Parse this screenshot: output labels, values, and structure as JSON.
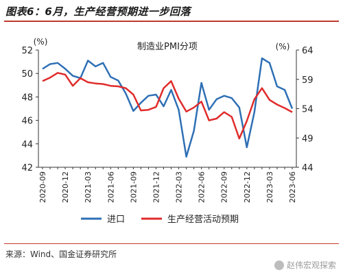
{
  "figure": {
    "title": "图表6：6月，生产经营预期进一步回落",
    "source": "来源：Wind、国金证券研究所",
    "watermark": "赵伟宏观探索"
  },
  "chart_data": {
    "type": "line",
    "title": "制造业PMI分项",
    "left_axis": {
      "unit": "(%)",
      "ylim": [
        42,
        52
      ],
      "ticks": [
        42,
        44,
        46,
        48,
        50,
        52
      ]
    },
    "right_axis": {
      "unit": "(%)",
      "ylim": [
        44,
        64
      ],
      "ticks": [
        44,
        49,
        54,
        59,
        64
      ]
    },
    "x": [
      "2020-09",
      "2020-10",
      "2020-11",
      "2020-12",
      "2021-01",
      "2021-02",
      "2021-03",
      "2021-04",
      "2021-05",
      "2021-06",
      "2021-07",
      "2021-08",
      "2021-09",
      "2021-10",
      "2021-11",
      "2021-12",
      "2022-01",
      "2022-02",
      "2022-03",
      "2022-04",
      "2022-05",
      "2022-06",
      "2022-07",
      "2022-08",
      "2022-09",
      "2022-10",
      "2022-11",
      "2022-12",
      "2023-01",
      "2023-02",
      "2023-03",
      "2023-04",
      "2023-05",
      "2023-06"
    ],
    "x_tick_labels": [
      "2020-09",
      "2020-12",
      "2021-03",
      "2021-06",
      "2021-09",
      "2021-12",
      "2022-03",
      "2022-06",
      "2022-09",
      "2022-12",
      "2023-03",
      "2023-06"
    ],
    "series": [
      {
        "name": "进口",
        "axis": "left",
        "color": "#2e6fb5",
        "values": [
          50.4,
          50.8,
          50.9,
          50.4,
          49.8,
          49.6,
          51.1,
          50.6,
          50.9,
          49.7,
          49.4,
          48.3,
          46.8,
          47.5,
          48.1,
          48.2,
          47.2,
          48.6,
          46.9,
          42.9,
          45.1,
          49.2,
          46.9,
          47.8,
          48.1,
          47.9,
          47.1,
          43.7,
          46.7,
          51.3,
          50.9,
          48.9,
          48.6,
          47.0
        ]
      },
      {
        "name": "生产经营活动预期",
        "axis": "right",
        "color": "#e02b2b",
        "values": [
          58.7,
          59.3,
          60.1,
          59.8,
          57.9,
          59.2,
          58.5,
          58.3,
          58.2,
          57.9,
          57.8,
          57.5,
          56.4,
          53.7,
          53.8,
          54.3,
          57.5,
          58.7,
          55.7,
          53.5,
          54.2,
          55.2,
          52.0,
          52.3,
          53.4,
          52.6,
          48.9,
          51.9,
          55.6,
          57.5,
          55.5,
          54.7,
          54.1,
          53.4
        ]
      }
    ]
  }
}
